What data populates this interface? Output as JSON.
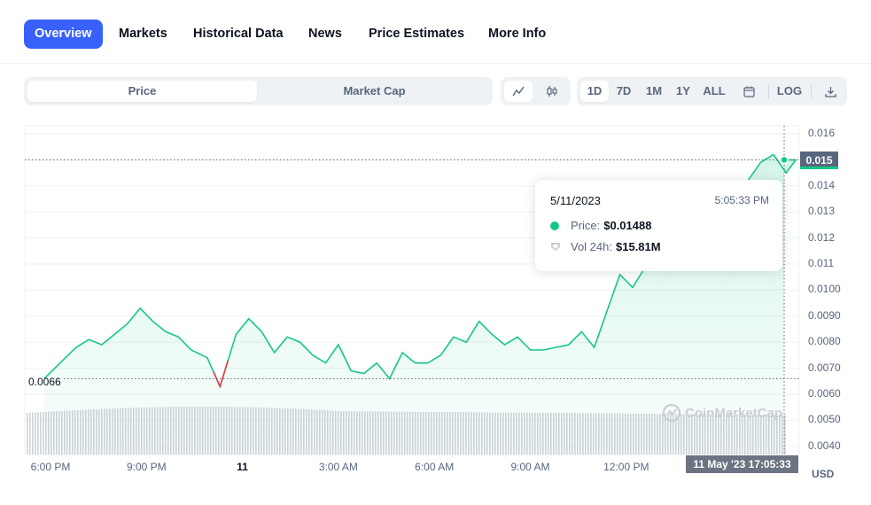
{
  "nav": {
    "tabs": [
      "Overview",
      "Markets",
      "Historical Data",
      "News",
      "Price Estimates",
      "More Info"
    ],
    "active": "Overview"
  },
  "controls": {
    "toggle": [
      "Price",
      "Market Cap"
    ],
    "chart_types": [
      "line-chart-icon",
      "candlestick-icon"
    ],
    "ranges": [
      "1D",
      "7D",
      "1M",
      "1Y",
      "ALL"
    ],
    "calendar_icon": "calendar-icon",
    "log_label": "LOG",
    "download_icon": "download-icon"
  },
  "colors": {
    "accent": "#3861fb",
    "up": "#16c784",
    "down": "#ea3943"
  },
  "chart": {
    "open_price_label": "0.0066",
    "current_price_label": "0.015",
    "unit": "USD",
    "crosshair_label": "11 May '23   17:05:33",
    "watermark": "CoinMarketCap"
  },
  "tooltip": {
    "date": "5/11/2023",
    "time": "5:05:33 PM",
    "price_label": "Price:",
    "price_value": "$0.01488",
    "vol_label": "Vol 24h:",
    "vol_value": "$15.81M"
  },
  "chart_data": {
    "type": "area",
    "ylabel": "USD",
    "ylim": [
      0.0035,
      0.0162
    ],
    "y_ticks": [
      "0.016",
      "0.015",
      "0.014",
      "0.013",
      "0.012",
      "0.011",
      "0.0100",
      "0.0090",
      "0.0080",
      "0.0070",
      "0.0060",
      "0.0050",
      "0.0040"
    ],
    "x_ticks": [
      "6:00 PM",
      "9:00 PM",
      "11",
      "3:00 AM",
      "6:00 AM",
      "9:00 AM",
      "12:00 PM"
    ],
    "x_hours": [
      0,
      3,
      6,
      9,
      12,
      15,
      18
    ],
    "price_series": {
      "x_hours": [
        -0.2,
        0.3,
        0.8,
        1.2,
        1.6,
        2.0,
        2.4,
        2.8,
        3.2,
        3.6,
        4.0,
        4.4,
        4.9,
        5.3,
        5.8,
        6.2,
        6.6,
        7.0,
        7.4,
        7.8,
        8.2,
        8.6,
        9.0,
        9.4,
        9.8,
        10.2,
        10.6,
        11.0,
        11.4,
        11.8,
        12.2,
        12.6,
        13.0,
        13.4,
        13.8,
        14.2,
        14.6,
        15.0,
        15.4,
        15.8,
        16.2,
        16.6,
        17.0,
        17.4,
        17.8,
        18.2,
        18.6,
        19.0,
        19.4,
        19.8,
        20.2,
        20.6,
        21.0,
        21.4,
        21.8,
        22.2,
        22.6,
        23.0,
        23.3
      ],
      "values": [
        0.0066,
        0.0072,
        0.0078,
        0.0081,
        0.0079,
        0.0083,
        0.0087,
        0.0093,
        0.0088,
        0.0084,
        0.0082,
        0.0077,
        0.0074,
        0.0063,
        0.0083,
        0.0089,
        0.0084,
        0.0076,
        0.0082,
        0.008,
        0.0075,
        0.0072,
        0.0079,
        0.0069,
        0.0068,
        0.0072,
        0.0066,
        0.0076,
        0.0072,
        0.0072,
        0.0075,
        0.0082,
        0.008,
        0.0088,
        0.0083,
        0.0079,
        0.0082,
        0.0077,
        0.0077,
        0.0078,
        0.0079,
        0.0084,
        0.0078,
        0.0092,
        0.0106,
        0.0101,
        0.0109,
        0.0116,
        0.0113,
        0.0119,
        0.0121,
        0.0125,
        0.0131,
        0.0136,
        0.0142,
        0.0149,
        0.0152,
        0.0145,
        0.015
      ]
    },
    "current_price": 0.015,
    "open_price": 0.0066,
    "grid": true,
    "legend": "none"
  }
}
